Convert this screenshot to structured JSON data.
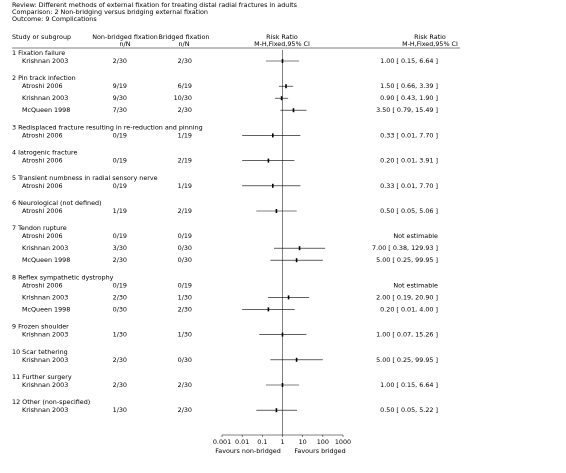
{
  "chart_data": {
    "type": "forest",
    "header": [
      "Review:  Different methods of external fixation for treating distal radial fractures in adults",
      "Comparison:  2 Non-bridging versus bridging external fixation",
      "Outcome:  9 Complications"
    ],
    "columns": {
      "study": "Study or subgroup",
      "group1": [
        "Non-bridged fixation",
        "n/N"
      ],
      "group2": [
        "Bridged fixation",
        "n/N"
      ],
      "plot": [
        "Risk Ratio",
        "M-H,Fixed,95% CI"
      ],
      "effect": [
        "Risk Ratio",
        "M-H,Fixed,95% CI"
      ]
    },
    "xlim": [
      0.001,
      1000
    ],
    "xticks": [
      0.001,
      0.01,
      0.1,
      1,
      10,
      100,
      1000
    ],
    "log_x": true,
    "favours": [
      "Favours non-bridged",
      "Favours bridged"
    ],
    "groups": [
      {
        "title": "1 Fixation failure",
        "studies": [
          {
            "name": "Krishnan 2003",
            "n1": "2/30",
            "n2": "2/30",
            "rr": 1.0,
            "lo": 0.15,
            "hi": 6.64,
            "label": "1.00 [ 0.15, 6.64 ]"
          }
        ]
      },
      {
        "title": "2 Pin track infection",
        "studies": [
          {
            "name": "Atroshi 2006",
            "n1": "9/19",
            "n2": "6/19",
            "rr": 1.5,
            "lo": 0.66,
            "hi": 3.39,
            "label": "1.50 [ 0.66, 3.39 ]"
          },
          {
            "name": "Krishnan 2003",
            "n1": "9/30",
            "n2": "10/30",
            "rr": 0.9,
            "lo": 0.43,
            "hi": 1.9,
            "label": "0.90 [ 0.43, 1.90 ]"
          },
          {
            "name": "McQueen 1998",
            "n1": "7/30",
            "n2": "2/30",
            "rr": 3.5,
            "lo": 0.79,
            "hi": 15.49,
            "label": "3.50 [ 0.79, 15.49 ]"
          }
        ]
      },
      {
        "title": "3 Redisplaced fracture resulting in re-reduction and pinning",
        "studies": [
          {
            "name": "Atroshi 2006",
            "n1": "0/19",
            "n2": "1/19",
            "rr": 0.33,
            "lo": 0.01,
            "hi": 7.7,
            "label": "0.33 [ 0.01, 7.70 ]"
          }
        ]
      },
      {
        "title": "4 Iatrogenic fracture",
        "studies": [
          {
            "name": "Atroshi 2006",
            "n1": "0/19",
            "n2": "2/19",
            "rr": 0.2,
            "lo": 0.01,
            "hi": 3.91,
            "label": "0.20 [ 0.01, 3.91 ]"
          }
        ]
      },
      {
        "title": "5 Transient numbness in radial sensory nerve",
        "studies": [
          {
            "name": "Atroshi 2006",
            "n1": "0/19",
            "n2": "1/19",
            "rr": 0.33,
            "lo": 0.01,
            "hi": 7.7,
            "label": "0.33 [ 0.01, 7.70 ]"
          }
        ]
      },
      {
        "title": "6 Neurological (not defined)",
        "studies": [
          {
            "name": "Atroshi 2006",
            "n1": "1/19",
            "n2": "2/19",
            "rr": 0.5,
            "lo": 0.05,
            "hi": 5.06,
            "label": "0.50 [ 0.05, 5.06 ]"
          }
        ]
      },
      {
        "title": "7 Tendon rupture",
        "studies": [
          {
            "name": "Atroshi 2006",
            "n1": "0/19",
            "n2": "0/19",
            "rr": null,
            "lo": null,
            "hi": null,
            "label": "Not estimable"
          },
          {
            "name": "Krishnan 2003",
            "n1": "3/30",
            "n2": "0/30",
            "rr": 7.0,
            "lo": 0.38,
            "hi": 129.93,
            "label": "7.00 [ 0.38, 129.93 ]"
          },
          {
            "name": "McQueen 1998",
            "n1": "2/30",
            "n2": "0/30",
            "rr": 5.0,
            "lo": 0.25,
            "hi": 99.95,
            "label": "5.00 [ 0.25, 99.95 ]"
          }
        ]
      },
      {
        "title": "8 Reflex sympathetic dystrophy",
        "studies": [
          {
            "name": "Atroshi 2006",
            "n1": "0/19",
            "n2": "0/19",
            "rr": null,
            "lo": null,
            "hi": null,
            "label": "Not estimable"
          },
          {
            "name": "Krishnan 2003",
            "n1": "2/30",
            "n2": "1/30",
            "rr": 2.0,
            "lo": 0.19,
            "hi": 20.9,
            "label": "2.00 [ 0.19, 20.90 ]"
          },
          {
            "name": "McQueen 1998",
            "n1": "0/30",
            "n2": "2/30",
            "rr": 0.2,
            "lo": 0.01,
            "hi": 4.0,
            "label": "0.20 [ 0.01, 4.00 ]"
          }
        ]
      },
      {
        "title": "9 Frozen shoulder",
        "studies": [
          {
            "name": "Krishnan 2003",
            "n1": "1/30",
            "n2": "1/30",
            "rr": 1.0,
            "lo": 0.07,
            "hi": 15.26,
            "label": "1.00 [ 0.07, 15.26 ]"
          }
        ]
      },
      {
        "title": "10 Scar tethering",
        "studies": [
          {
            "name": "Krishnan 2003",
            "n1": "2/30",
            "n2": "0/30",
            "rr": 5.0,
            "lo": 0.25,
            "hi": 99.95,
            "label": "5.00 [ 0.25, 99.95 ]"
          }
        ]
      },
      {
        "title": "11 Further surgery",
        "studies": [
          {
            "name": "Krishnan 2003",
            "n1": "2/30",
            "n2": "2/30",
            "rr": 1.0,
            "lo": 0.15,
            "hi": 6.64,
            "label": "1.00 [ 0.15, 6.64 ]"
          }
        ]
      },
      {
        "title": "12 Other (non-specified)",
        "studies": [
          {
            "name": "Krishnan 2003",
            "n1": "1/30",
            "n2": "2/30",
            "rr": 0.5,
            "lo": 0.05,
            "hi": 5.22,
            "label": "0.50 [ 0.05, 5.22 ]"
          }
        ]
      }
    ]
  }
}
